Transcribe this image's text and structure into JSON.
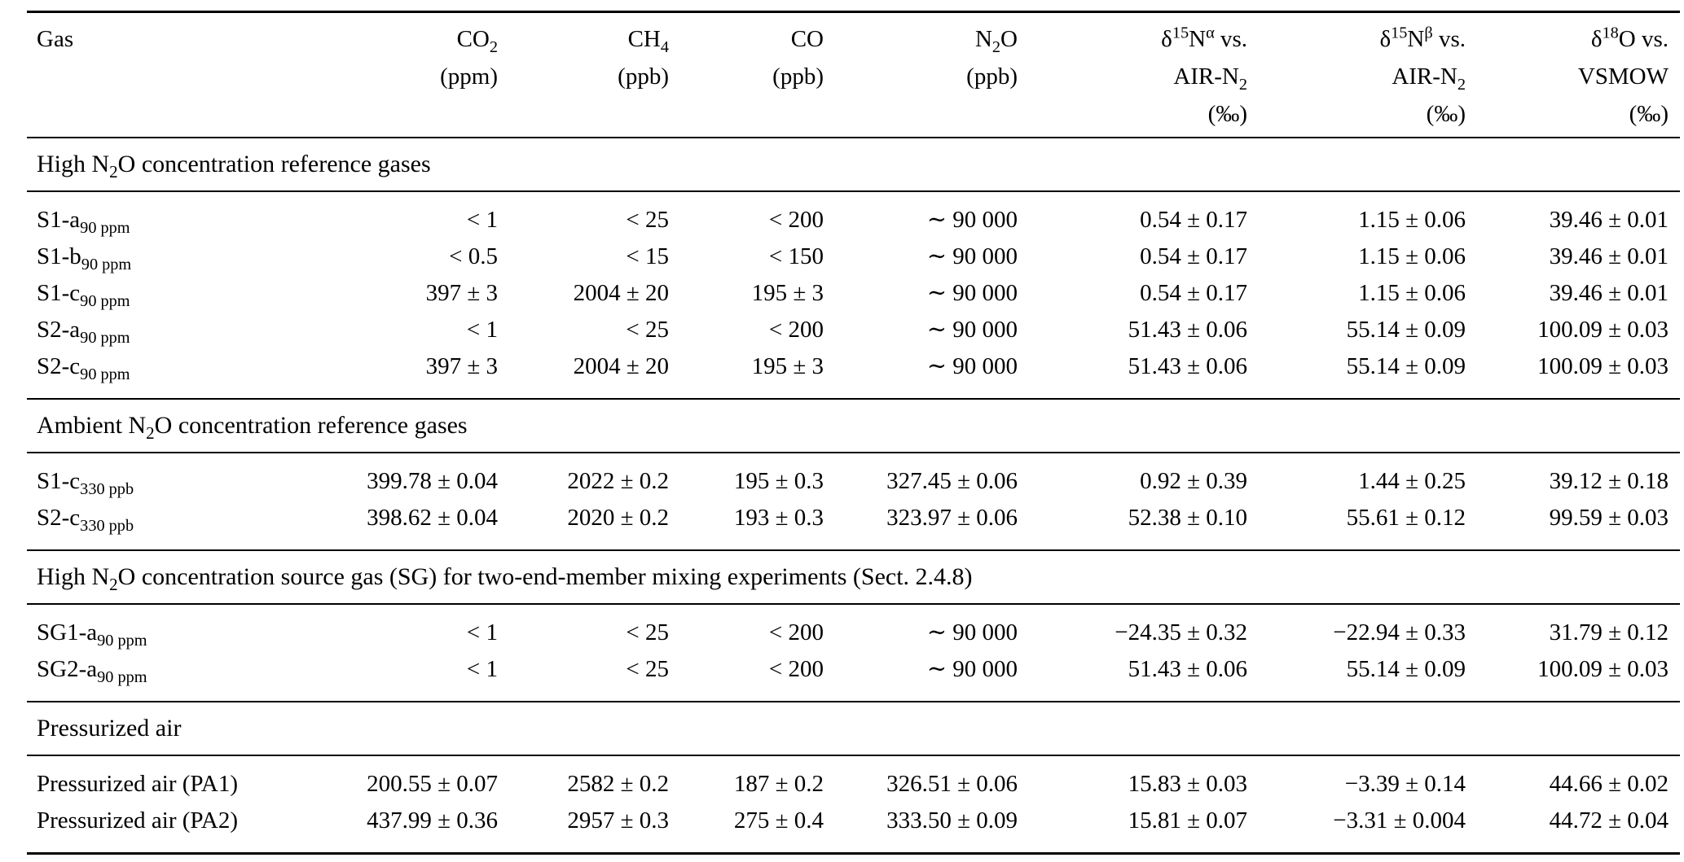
{
  "table": {
    "columns": [
      {
        "id": "gas",
        "lines": [
          "Gas"
        ]
      },
      {
        "id": "co2",
        "lines": [
          "CO_{2}",
          "(ppm)"
        ]
      },
      {
        "id": "ch4",
        "lines": [
          "CH_{4}",
          "(ppb)"
        ]
      },
      {
        "id": "co",
        "lines": [
          "CO",
          "(ppb)"
        ]
      },
      {
        "id": "n2o",
        "lines": [
          "N_{2}O",
          "(ppb)"
        ]
      },
      {
        "id": "d15n-alpha",
        "lines": [
          "δ^{15}N^{α} vs.",
          "AIR-N_{2}",
          "(‰)"
        ]
      },
      {
        "id": "d15n-beta",
        "lines": [
          "δ^{15}N^{β} vs.",
          "AIR-N_{2}",
          "(‰)"
        ]
      },
      {
        "id": "d18o",
        "lines": [
          "δ^{18}O vs.",
          "VSMOW",
          "(‰)"
        ]
      }
    ],
    "sections": [
      {
        "title": "High N_{2}O concentration reference gases",
        "rows": [
          {
            "label": "S1-a_{90 ppm}",
            "values": [
              "< 1",
              "< 25",
              "< 200",
              "∼ 90 000",
              "0.54 ± 0.17",
              "1.15 ± 0.06",
              "39.46 ± 0.01"
            ]
          },
          {
            "label": "S1-b_{90 ppm}",
            "values": [
              "< 0.5",
              "< 15",
              "< 150",
              "∼ 90 000",
              "0.54 ± 0.17",
              "1.15 ± 0.06",
              "39.46 ± 0.01"
            ]
          },
          {
            "label": "S1-c_{90 ppm}",
            "values": [
              "397 ± 3",
              "2004 ± 20",
              "195 ± 3",
              "∼ 90 000",
              "0.54 ± 0.17",
              "1.15 ± 0.06",
              "39.46 ± 0.01"
            ]
          },
          {
            "label": "S2-a_{90 ppm}",
            "values": [
              "< 1",
              "< 25",
              "< 200",
              "∼ 90 000",
              "51.43 ± 0.06",
              "55.14 ± 0.09",
              "100.09 ± 0.03"
            ]
          },
          {
            "label": "S2-c_{90 ppm}",
            "values": [
              "397 ± 3",
              "2004 ± 20",
              "195 ± 3",
              "∼ 90 000",
              "51.43 ± 0.06",
              "55.14 ± 0.09",
              "100.09 ± 0.03"
            ]
          }
        ]
      },
      {
        "title": "Ambient N_{2}O concentration reference gases",
        "rows": [
          {
            "label": "S1-c_{330 ppb}",
            "values": [
              "399.78 ± 0.04",
              "2022 ± 0.2",
              "195 ± 0.3",
              "327.45 ± 0.06",
              "0.92 ± 0.39",
              "1.44 ± 0.25",
              "39.12 ± 0.18"
            ]
          },
          {
            "label": "S2-c_{330 ppb}",
            "values": [
              "398.62 ± 0.04",
              "2020 ± 0.2",
              "193 ± 0.3",
              "323.97 ± 0.06",
              "52.38 ± 0.10",
              "55.61 ± 0.12",
              "99.59 ± 0.03"
            ]
          }
        ]
      },
      {
        "title": "High N_{2}O concentration source gas (SG) for two-end-member mixing experiments (Sect. 2.4.8)",
        "rows": [
          {
            "label": "SG1-a_{90 ppm}",
            "values": [
              "< 1",
              "< 25",
              "< 200",
              "∼ 90 000",
              "−24.35 ± 0.32",
              "−22.94 ± 0.33",
              "31.79 ± 0.12"
            ]
          },
          {
            "label": "SG2-a_{90 ppm}",
            "values": [
              "< 1",
              "< 25",
              "< 200",
              "∼ 90 000",
              "51.43 ± 0.06",
              "55.14 ± 0.09",
              "100.09 ± 0.03"
            ]
          }
        ]
      },
      {
        "title": "Pressurized air",
        "rows": [
          {
            "label": "Pressurized air (PA1)",
            "values": [
              "200.55 ± 0.07",
              "2582 ± 0.2",
              "187 ± 0.2",
              "326.51 ± 0.06",
              "15.83 ± 0.03",
              "−3.39 ± 0.14",
              "44.66 ± 0.02"
            ]
          },
          {
            "label": "Pressurized air (PA2)",
            "values": [
              "437.99 ± 0.36",
              "2957 ± 0.3",
              "275 ± 0.4",
              "333.50 ± 0.09",
              "15.81 ± 0.07",
              "−3.31 ± 0.004",
              "44.72 ± 0.04"
            ]
          }
        ]
      }
    ]
  }
}
